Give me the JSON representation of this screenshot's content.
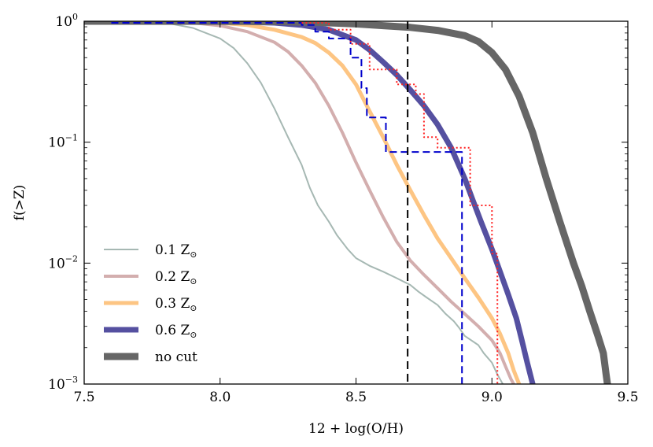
{
  "chart_data": {
    "type": "line",
    "xlabel": "12 + log(O/H)",
    "ylabel": "f(>Z)",
    "xlim": [
      7.5,
      9.5
    ],
    "ylim": [
      0.001,
      1
    ],
    "yscale": "log",
    "xticks": [
      7.5,
      8.0,
      8.5,
      9.0,
      9.5
    ],
    "xtick_labels": [
      "7.5",
      "8.0",
      "8.5",
      "9.0",
      "9.5"
    ],
    "yticks": [
      {
        "value": 1,
        "base": "10",
        "exp": "0"
      },
      {
        "value": 0.1,
        "base": "10",
        "exp": "−1"
      },
      {
        "value": 0.01,
        "base": "10",
        "exp": "−2"
      },
      {
        "value": 0.001,
        "base": "10",
        "exp": "−3"
      }
    ],
    "grid": false,
    "legend_position": "lower-left",
    "series": [
      {
        "name": "0.1 Z⊙",
        "legend_main": "0.1 Z",
        "legend_sub": "⊙",
        "color": "#a6b8b3",
        "width": 2,
        "dash": "",
        "points": [
          [
            7.5,
            1.0
          ],
          [
            7.7,
            0.995
          ],
          [
            7.8,
            0.97
          ],
          [
            7.9,
            0.88
          ],
          [
            8.0,
            0.72
          ],
          [
            8.05,
            0.6
          ],
          [
            8.1,
            0.45
          ],
          [
            8.15,
            0.31
          ],
          [
            8.2,
            0.19
          ],
          [
            8.25,
            0.11
          ],
          [
            8.3,
            0.065
          ],
          [
            8.33,
            0.042
          ],
          [
            8.36,
            0.03
          ],
          [
            8.4,
            0.022
          ],
          [
            8.43,
            0.017
          ],
          [
            8.47,
            0.013
          ],
          [
            8.5,
            0.011
          ],
          [
            8.55,
            0.0095
          ],
          [
            8.6,
            0.0085
          ],
          [
            8.65,
            0.0075
          ],
          [
            8.7,
            0.0066
          ],
          [
            8.73,
            0.0058
          ],
          [
            8.76,
            0.0052
          ],
          [
            8.8,
            0.0045
          ],
          [
            8.83,
            0.0038
          ],
          [
            8.86,
            0.0033
          ],
          [
            8.88,
            0.0029
          ],
          [
            8.9,
            0.0025
          ],
          [
            8.95,
            0.0021
          ],
          [
            8.97,
            0.0018
          ],
          [
            9.0,
            0.0015
          ],
          [
            9.02,
            0.0012
          ],
          [
            9.04,
            0.001
          ]
        ]
      },
      {
        "name": "0.2 Z⊙",
        "legend_main": "0.2 Z",
        "legend_sub": "⊙",
        "color": "#d3aeae",
        "width": 4,
        "dash": "",
        "points": [
          [
            7.5,
            1.0
          ],
          [
            7.8,
            0.995
          ],
          [
            7.9,
            0.97
          ],
          [
            8.0,
            0.92
          ],
          [
            8.1,
            0.82
          ],
          [
            8.2,
            0.67
          ],
          [
            8.25,
            0.56
          ],
          [
            8.3,
            0.43
          ],
          [
            8.35,
            0.31
          ],
          [
            8.4,
            0.2
          ],
          [
            8.45,
            0.12
          ],
          [
            8.5,
            0.068
          ],
          [
            8.55,
            0.04
          ],
          [
            8.6,
            0.024
          ],
          [
            8.65,
            0.015
          ],
          [
            8.7,
            0.0105
          ],
          [
            8.75,
            0.008
          ],
          [
            8.8,
            0.0062
          ],
          [
            8.85,
            0.0048
          ],
          [
            8.9,
            0.0038
          ],
          [
            8.95,
            0.003
          ],
          [
            9.0,
            0.0023
          ],
          [
            9.03,
            0.0018
          ],
          [
            9.05,
            0.0014
          ],
          [
            9.07,
            0.0011
          ],
          [
            9.08,
            0.001
          ]
        ]
      },
      {
        "name": "0.3 Z⊙",
        "legend_main": "0.3 Z",
        "legend_sub": "⊙",
        "color": "#fdc583",
        "width": 5,
        "dash": "",
        "points": [
          [
            7.5,
            1.0
          ],
          [
            7.9,
            0.995
          ],
          [
            8.0,
            0.97
          ],
          [
            8.1,
            0.93
          ],
          [
            8.2,
            0.85
          ],
          [
            8.3,
            0.74
          ],
          [
            8.35,
            0.66
          ],
          [
            8.4,
            0.55
          ],
          [
            8.45,
            0.43
          ],
          [
            8.5,
            0.3
          ],
          [
            8.55,
            0.18
          ],
          [
            8.6,
            0.11
          ],
          [
            8.65,
            0.065
          ],
          [
            8.7,
            0.04
          ],
          [
            8.75,
            0.025
          ],
          [
            8.8,
            0.016
          ],
          [
            8.85,
            0.011
          ],
          [
            8.9,
            0.0075
          ],
          [
            8.95,
            0.0052
          ],
          [
            9.0,
            0.0035
          ],
          [
            9.03,
            0.0026
          ],
          [
            9.06,
            0.0018
          ],
          [
            9.08,
            0.0013
          ],
          [
            9.1,
            0.001
          ]
        ]
      },
      {
        "name": "0.6 Z⊙",
        "legend_main": "0.6 Z",
        "legend_sub": "⊙",
        "color": "#5550a0",
        "width": 7,
        "dash": "",
        "points": [
          [
            7.5,
            1.0
          ],
          [
            8.0,
            0.995
          ],
          [
            8.2,
            0.97
          ],
          [
            8.3,
            0.93
          ],
          [
            8.4,
            0.85
          ],
          [
            8.5,
            0.7
          ],
          [
            8.55,
            0.58
          ],
          [
            8.6,
            0.46
          ],
          [
            8.65,
            0.36
          ],
          [
            8.7,
            0.27
          ],
          [
            8.75,
            0.2
          ],
          [
            8.8,
            0.14
          ],
          [
            8.85,
            0.09
          ],
          [
            8.9,
            0.05
          ],
          [
            8.93,
            0.033
          ],
          [
            8.96,
            0.022
          ],
          [
            9.0,
            0.013
          ],
          [
            9.03,
            0.0085
          ],
          [
            9.06,
            0.0055
          ],
          [
            9.09,
            0.0035
          ],
          [
            9.11,
            0.0023
          ],
          [
            9.13,
            0.0015
          ],
          [
            9.15,
            0.001
          ]
        ]
      },
      {
        "name": "no cut",
        "legend_main": "no cut",
        "legend_sub": "",
        "color": "#666666",
        "width": 9,
        "dash": "",
        "points": [
          [
            7.5,
            1.0
          ],
          [
            8.2,
            0.995
          ],
          [
            8.4,
            0.97
          ],
          [
            8.5,
            0.95
          ],
          [
            8.6,
            0.92
          ],
          [
            8.7,
            0.89
          ],
          [
            8.8,
            0.84
          ],
          [
            8.9,
            0.76
          ],
          [
            8.95,
            0.68
          ],
          [
            9.0,
            0.55
          ],
          [
            9.05,
            0.4
          ],
          [
            9.1,
            0.24
          ],
          [
            9.15,
            0.12
          ],
          [
            9.2,
            0.05
          ],
          [
            9.25,
            0.022
          ],
          [
            9.3,
            0.01
          ],
          [
            9.33,
            0.0065
          ],
          [
            9.36,
            0.004
          ],
          [
            9.39,
            0.0025
          ],
          [
            9.41,
            0.0018
          ],
          [
            9.42,
            0.0012
          ],
          [
            9.425,
            0.001
          ]
        ]
      },
      {
        "name": "",
        "color": "#0000cc",
        "width": 2,
        "dash": "9,5",
        "step": true,
        "points": [
          [
            7.6,
            0.97
          ],
          [
            8.3,
            0.97
          ],
          [
            8.3,
            0.93
          ],
          [
            8.35,
            0.93
          ],
          [
            8.35,
            0.82
          ],
          [
            8.4,
            0.82
          ],
          [
            8.4,
            0.72
          ],
          [
            8.48,
            0.72
          ],
          [
            8.48,
            0.5
          ],
          [
            8.52,
            0.5
          ],
          [
            8.52,
            0.28
          ],
          [
            8.54,
            0.28
          ],
          [
            8.54,
            0.16
          ],
          [
            8.61,
            0.16
          ],
          [
            8.61,
            0.083
          ],
          [
            8.89,
            0.083
          ],
          [
            8.89,
            0.001
          ]
        ]
      },
      {
        "name": "",
        "color": "#ff2222",
        "width": 2,
        "dash": "2,3",
        "step": true,
        "points": [
          [
            8.3,
            0.97
          ],
          [
            8.4,
            0.97
          ],
          [
            8.4,
            0.85
          ],
          [
            8.48,
            0.85
          ],
          [
            8.48,
            0.65
          ],
          [
            8.55,
            0.65
          ],
          [
            8.55,
            0.4
          ],
          [
            8.65,
            0.4
          ],
          [
            8.65,
            0.3
          ],
          [
            8.72,
            0.3
          ],
          [
            8.72,
            0.25
          ],
          [
            8.75,
            0.25
          ],
          [
            8.75,
            0.11
          ],
          [
            8.8,
            0.11
          ],
          [
            8.8,
            0.09
          ],
          [
            8.92,
            0.09
          ],
          [
            8.92,
            0.03
          ],
          [
            9.0,
            0.03
          ],
          [
            9.0,
            0.012
          ],
          [
            9.02,
            0.012
          ],
          [
            9.02,
            0.001
          ]
        ]
      }
    ],
    "vline": {
      "x": 8.69,
      "color": "#000000",
      "dash": "10,6",
      "width": 2
    }
  }
}
